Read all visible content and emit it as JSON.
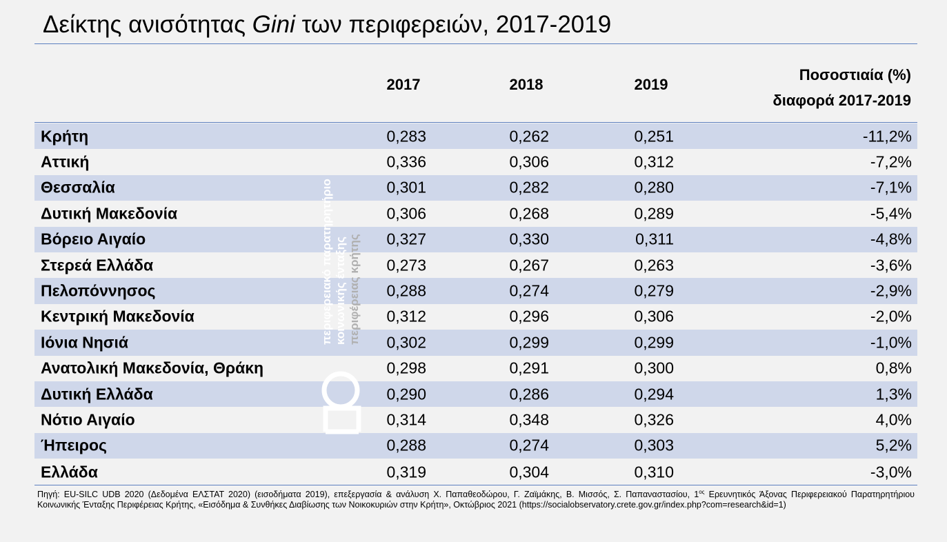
{
  "chart_data": {
    "type": "table",
    "title_parts": [
      "Δείκτης ανισότητας ",
      "Gini",
      " των περιφερειών, 2017-2019"
    ],
    "columns": [
      "2017",
      "2018",
      "2019"
    ],
    "pct_header": [
      "Ποσοστιαία (%)",
      "διαφορά 2017-2019"
    ],
    "rows": [
      {
        "region": "Κρήτη",
        "v2017": "0,283",
        "v2018": "0,262",
        "v2019": "0,251",
        "pct": "-11,2%"
      },
      {
        "region": "Αττική",
        "v2017": "0,336",
        "v2018": "0,306",
        "v2019": "0,312",
        "pct": "-7,2%"
      },
      {
        "region": "Θεσσαλία",
        "v2017": "0,301",
        "v2018": "0,282",
        "v2019": "0,280",
        "pct": "-7,1%"
      },
      {
        "region": "Δυτική Μακεδονία",
        "v2017": "0,306",
        "v2018": "0,268",
        "v2019": "0,289",
        "pct": "-5,4%"
      },
      {
        "region": "Βόρειο Αιγαίο",
        "v2017": "0,327",
        "v2018": "0,330",
        "v2019": "0,311",
        "pct": "-4,8%"
      },
      {
        "region": "Στερεά Ελλάδα",
        "v2017": "0,273",
        "v2018": "0,267",
        "v2019": "0,263",
        "pct": "-3,6%"
      },
      {
        "region": "Πελοπόννησος",
        "v2017": "0,288",
        "v2018": "0,274",
        "v2019": "0,279",
        "pct": "-2,9%"
      },
      {
        "region": "Κεντρική Μακεδονία",
        "v2017": "0,312",
        "v2018": "0,296",
        "v2019": "0,306",
        "pct": "-2,0%"
      },
      {
        "region": "Ιόνια Νησιά",
        "v2017": "0,302",
        "v2018": "0,299",
        "v2019": "0,299",
        "pct": "-1,0%"
      },
      {
        "region": "Ανατολική Μακεδονία, Θράκη",
        "v2017": "0,298",
        "v2018": "0,291",
        "v2019": "0,300",
        "pct": "0,8%"
      },
      {
        "region": "Δυτική Ελλάδα",
        "v2017": "0,290",
        "v2018": "0,286",
        "v2019": "0,294",
        "pct": "1,3%"
      },
      {
        "region": "Νότιο Αιγαίο",
        "v2017": "0,314",
        "v2018": "0,348",
        "v2019": "0,326",
        "pct": "4,0%"
      },
      {
        "region": "Ήπειρος",
        "v2017": "0,288",
        "v2018": "0,274",
        "v2019": "0,303",
        "pct": "5,2%"
      },
      {
        "region": "Ελλάδα",
        "v2017": "0,319",
        "v2018": "0,304",
        "v2019": "0,310",
        "pct": "-3,0%"
      }
    ]
  },
  "source": {
    "part1": "Πηγή: EU-SILC UDB 2020 (Δεδομένα ΕΛΣΤΑΤ 2020) (εισοδήματα 2019), επεξεργασία & ανάλυση Χ. Παπαθεοδώρου, Γ. Ζαϊμάκης, Β. Μισσός, Σ. Παπαναστασίου, 1",
    "sup": "ος",
    "part2": " Ερευνητικός Άξονας Περιφερειακού Παρατηρητήριου Κοινωνικής Ένταξης Περιφέρειας Κρήτης, «Εισόδημα & Συνθήκες Διαβίωσης των Νοικοκυριών στην Κρήτη», Οκτώβριος 2021 (https://socialobservatory.crete.gov.gr/index.php?com=research&id=1)"
  },
  "watermark": {
    "lines": [
      "περιφερειακό παρατηρητήριο",
      "κοινωνικής ένταξης",
      "περιφέρειας κρήτης"
    ],
    "colors": [
      "#ffffff",
      "#ffffff",
      "#b0b0b0"
    ]
  },
  "colors": {
    "accent_rule": "#5b7fbf",
    "alt_row": "#cfd7ea"
  }
}
